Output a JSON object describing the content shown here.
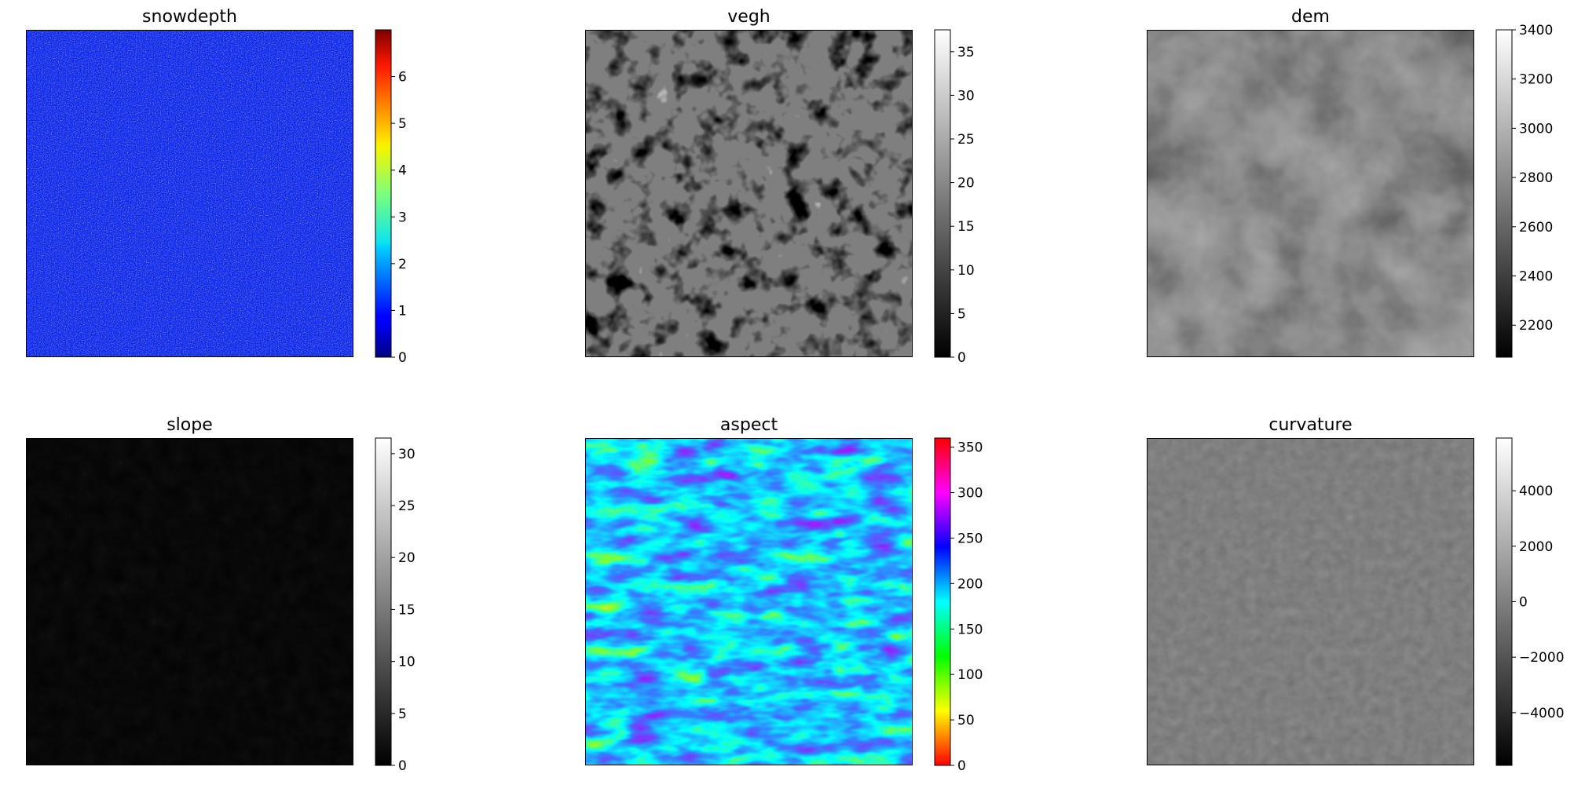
{
  "chart_data": [
    {
      "type": "heatmap",
      "title": "snowdepth",
      "colormap": "jet",
      "colorbar": {
        "range": [
          0,
          7
        ],
        "ticks": [
          0,
          1,
          2,
          3,
          4,
          5,
          6
        ],
        "tick_labels": [
          "0",
          "1",
          "2",
          "3",
          "4",
          "5",
          "6"
        ]
      },
      "grid": false
    },
    {
      "type": "heatmap",
      "title": "vegh",
      "colormap": "gray",
      "colorbar": {
        "range": [
          0,
          37.5
        ],
        "ticks": [
          0,
          5,
          10,
          15,
          20,
          25,
          30,
          35
        ],
        "tick_labels": [
          "0",
          "5",
          "10",
          "15",
          "20",
          "25",
          "30",
          "35"
        ]
      },
      "grid": false
    },
    {
      "type": "heatmap",
      "title": "dem",
      "colormap": "gray",
      "colorbar": {
        "range": [
          2070,
          3400
        ],
        "ticks": [
          2200,
          2400,
          2600,
          2800,
          3000,
          3200,
          3400
        ],
        "tick_labels": [
          "2200",
          "2400",
          "2600",
          "2800",
          "3000",
          "3200",
          "3400"
        ]
      },
      "grid": false
    },
    {
      "type": "heatmap",
      "title": "slope",
      "colormap": "gray",
      "colorbar": {
        "range": [
          0,
          31.5
        ],
        "ticks": [
          0,
          5,
          10,
          15,
          20,
          25,
          30
        ],
        "tick_labels": [
          "0",
          "5",
          "10",
          "15",
          "20",
          "25",
          "30"
        ]
      },
      "grid": false
    },
    {
      "type": "heatmap",
      "title": "aspect",
      "colormap": "hsv",
      "colorbar": {
        "range": [
          0,
          360
        ],
        "ticks": [
          0,
          50,
          100,
          150,
          200,
          250,
          300,
          350
        ],
        "tick_labels": [
          "0",
          "50",
          "100",
          "150",
          "200",
          "250",
          "300",
          "350"
        ]
      },
      "grid": false
    },
    {
      "type": "heatmap",
      "title": "curvature",
      "colormap": "gray",
      "colorbar": {
        "range": [
          -5900,
          5900
        ],
        "ticks": [
          -4000,
          -2000,
          0,
          2000,
          4000
        ],
        "tick_labels": [
          "−4000",
          "−2000",
          "0",
          "2000",
          "4000"
        ]
      },
      "grid": false
    }
  ]
}
